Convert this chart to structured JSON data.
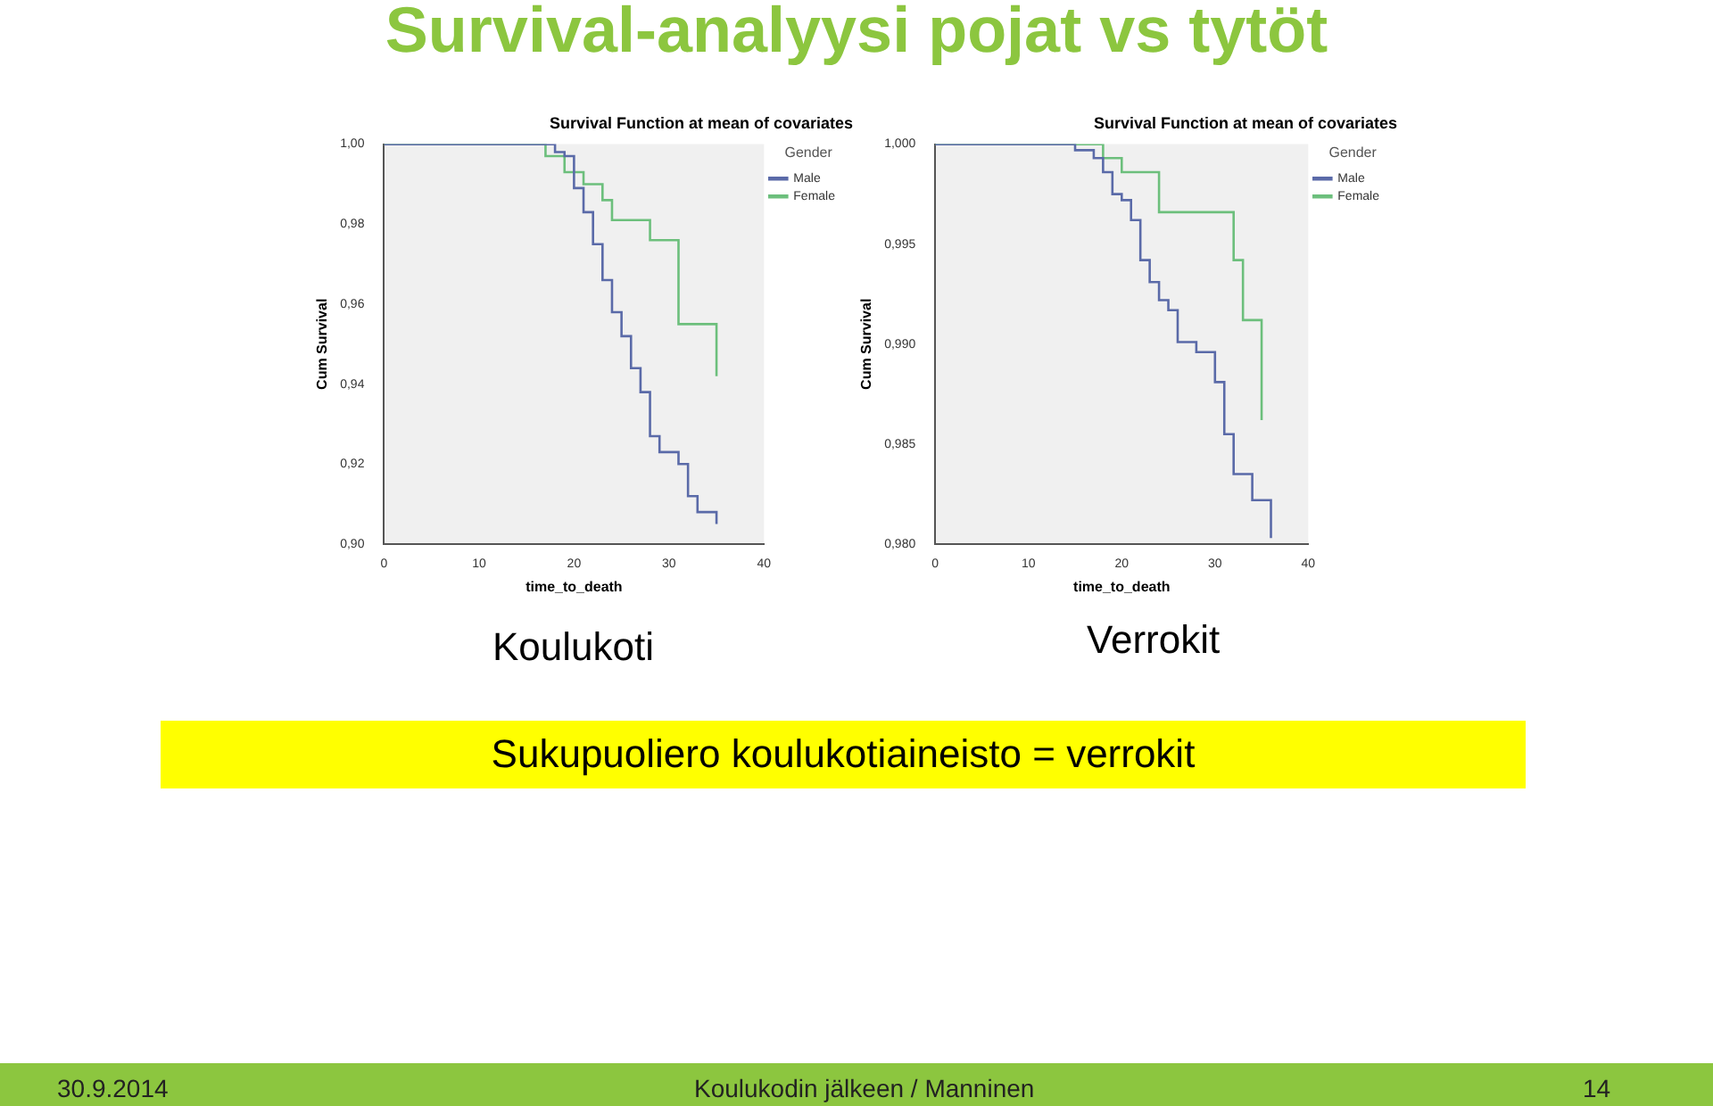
{
  "chart_data": [
    {
      "type": "step",
      "title": "Survival Function at mean of covariates",
      "xlabel": "time_to_death",
      "ylabel": "Cum Survival",
      "legend_title": "Gender",
      "legend": "top right",
      "marker": "none",
      "grid": false,
      "annotations": [
        "Survival-analyysi pojat vs tytöt",
        "Koulukoti"
      ],
      "xlim": [
        0,
        40
      ],
      "xticks": [
        0,
        10,
        20,
        30,
        40
      ],
      "ylim": [
        0.9,
        1.0
      ],
      "yticks": [
        {
          "value": 0.9,
          "label": "0,90"
        },
        {
          "value": 0.92,
          "label": "0,92"
        },
        {
          "value": 0.94,
          "label": "0,94"
        },
        {
          "value": 0.96,
          "label": "0,96"
        },
        {
          "value": 0.98,
          "label": "0,98"
        },
        {
          "value": 1.0,
          "label": "1,00"
        }
      ],
      "series": [
        {
          "name": "Male",
          "color": "#5a6aa8",
          "x": [
            0,
            18,
            19,
            20,
            21,
            22,
            23,
            24,
            25,
            26,
            27,
            28,
            29,
            31,
            32,
            33,
            35
          ],
          "values": [
            1.0,
            0.998,
            0.997,
            0.989,
            0.983,
            0.975,
            0.966,
            0.958,
            0.952,
            0.944,
            0.938,
            0.927,
            0.923,
            0.92,
            0.912,
            0.908,
            0.905
          ]
        },
        {
          "name": "Female",
          "color": "#6cbf7c",
          "x": [
            0,
            17,
            19,
            21,
            23,
            24,
            28,
            31,
            35
          ],
          "values": [
            1.0,
            0.997,
            0.993,
            0.99,
            0.986,
            0.981,
            0.976,
            0.955,
            0.942
          ]
        }
      ]
    },
    {
      "type": "step",
      "title": "Survival Function at mean of covariates",
      "xlabel": "time_to_death",
      "ylabel": "Cum Survival",
      "legend_title": "Gender",
      "legend": "top right",
      "marker": "none",
      "grid": false,
      "annotations": [
        "Verrokit",
        "Sukupuoliero koulukotiaineisto = verrokit",
        "30.9.2014",
        "Koulukodin jälkeen / Manninen",
        "14"
      ],
      "xlim": [
        0,
        40
      ],
      "xticks": [
        0,
        10,
        20,
        30,
        40
      ],
      "ylim": [
        0.98,
        1.0
      ],
      "yticks": [
        {
          "value": 0.98,
          "label": "0,980"
        },
        {
          "value": 0.985,
          "label": "0,985"
        },
        {
          "value": 0.99,
          "label": "0,990"
        },
        {
          "value": 0.995,
          "label": "0,995"
        },
        {
          "value": 1.0,
          "label": "1,000"
        }
      ],
      "series": [
        {
          "name": "Male",
          "color": "#5a6aa8",
          "x": [
            0,
            15,
            17,
            18,
            19,
            20,
            21,
            22,
            23,
            24,
            25,
            26,
            28,
            30,
            31,
            32,
            34,
            36
          ],
          "values": [
            1.0,
            0.9997,
            0.9993,
            0.9986,
            0.9975,
            0.9972,
            0.9962,
            0.9942,
            0.9931,
            0.9922,
            0.9917,
            0.9901,
            0.9896,
            0.9881,
            0.9855,
            0.9835,
            0.9822,
            0.9803
          ]
        },
        {
          "name": "Female",
          "color": "#6cbf7c",
          "x": [
            0,
            18,
            20,
            24,
            32,
            33,
            35
          ],
          "values": [
            1.0,
            0.9993,
            0.9986,
            0.9966,
            0.9942,
            0.9912,
            0.9862
          ]
        }
      ]
    }
  ]
}
